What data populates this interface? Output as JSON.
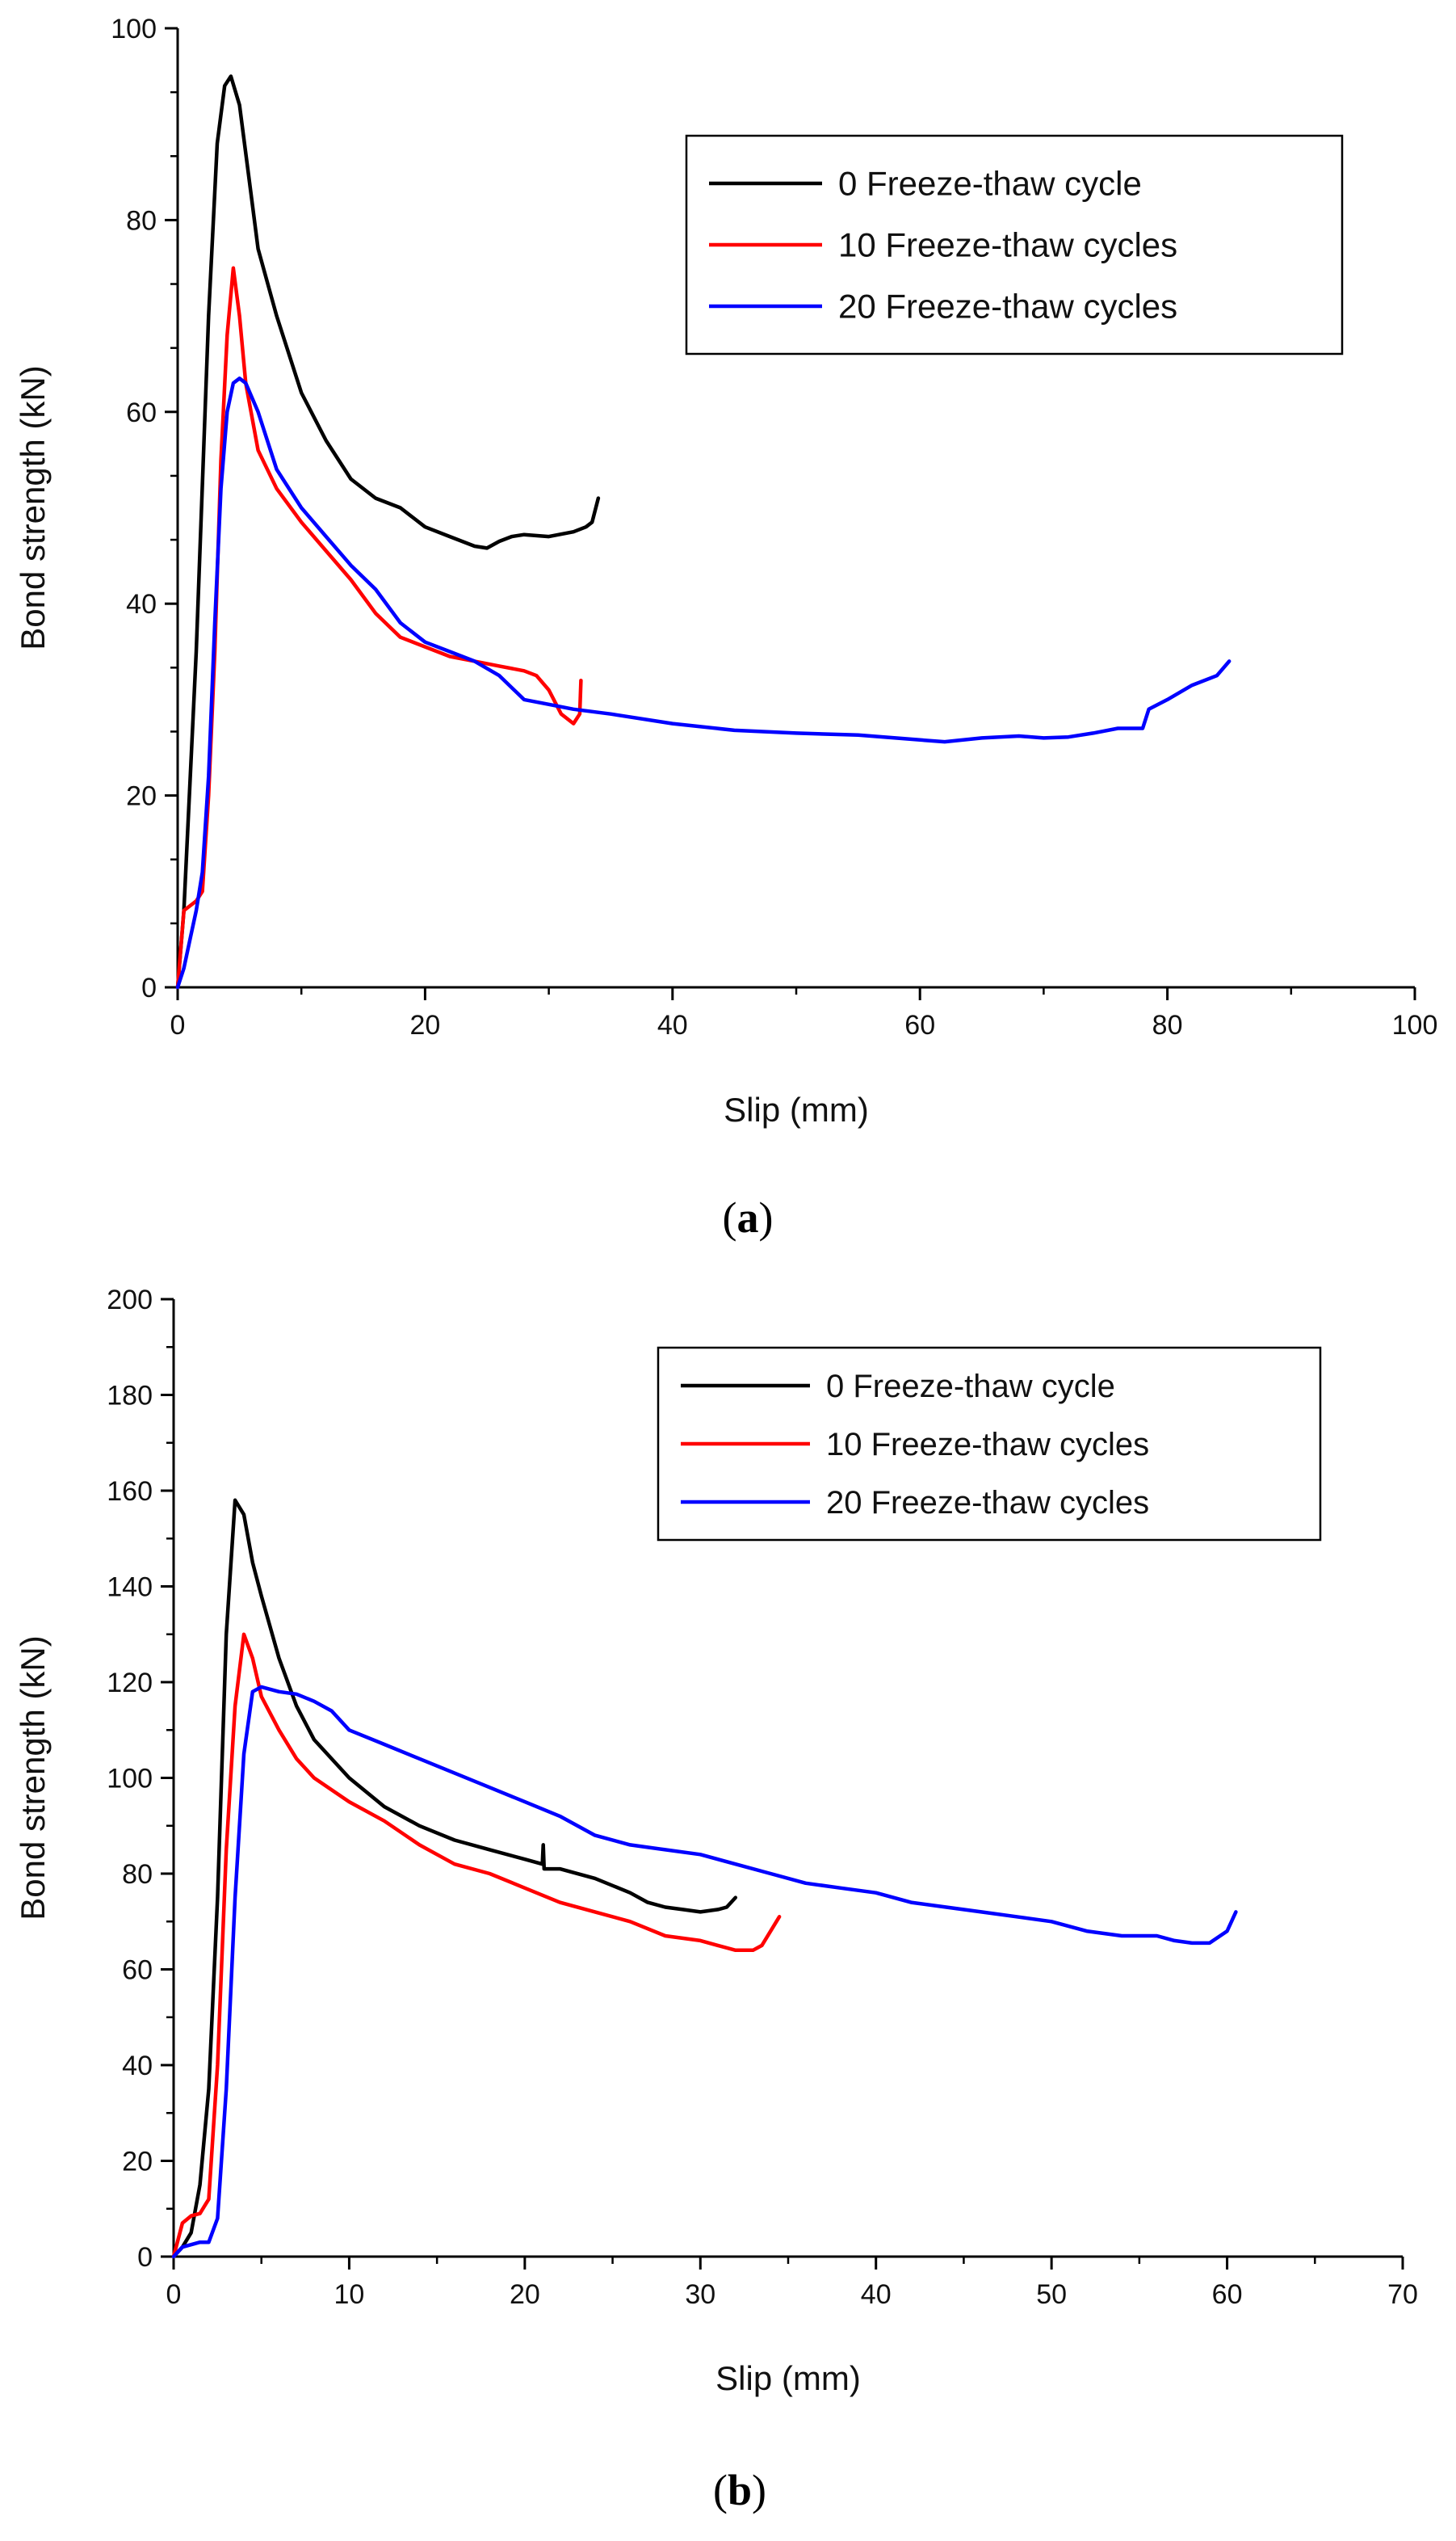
{
  "chart_data": [
    {
      "panel": "(a)",
      "panel_letter": "a",
      "type": "line",
      "title": "",
      "xlabel": "Slip (mm)",
      "ylabel": "Bond strength (kN)",
      "xlim": [
        0,
        100
      ],
      "ylim": [
        0,
        100
      ],
      "xticks": [
        0,
        20,
        40,
        60,
        80,
        100
      ],
      "yticks": [
        0,
        20,
        40,
        60,
        80,
        100
      ],
      "legend_position": "top-right",
      "series": [
        {
          "name": "0 Freeze-thaw cycle",
          "color": "#000000",
          "x": [
            0,
            0.5,
            1.5,
            2.5,
            3.2,
            3.8,
            4.3,
            5.0,
            5.8,
            6.5,
            8,
            10,
            12,
            14,
            16,
            18,
            20,
            22,
            24,
            25,
            26,
            27,
            28,
            30,
            32,
            33,
            33.5,
            34
          ],
          "y": [
            0,
            8,
            35,
            70,
            88,
            94,
            95,
            92,
            84,
            77,
            70,
            62,
            57,
            53,
            51,
            50,
            48,
            47,
            46,
            45.8,
            46.5,
            47,
            47.2,
            47,
            47.5,
            48,
            48.5,
            51
          ]
        },
        {
          "name": "10 Freeze-thaw cycles",
          "color": "#ff0000",
          "x": [
            0,
            0.5,
            1.0,
            1.5,
            2.0,
            2.5,
            3.0,
            3.5,
            4.0,
            4.5,
            5.0,
            5.5,
            6.5,
            8,
            10,
            12,
            14,
            16,
            18,
            20,
            22,
            24,
            26,
            28,
            29,
            30,
            31,
            32,
            32.5,
            32.6
          ],
          "y": [
            0,
            8,
            8.5,
            9,
            10,
            20,
            35,
            55,
            68,
            75,
            70,
            63,
            56,
            52,
            48.5,
            45.5,
            42.5,
            39,
            36.5,
            35.5,
            34.5,
            34,
            33.5,
            33,
            32.5,
            31,
            28.5,
            27.5,
            28.5,
            32
          ]
        },
        {
          "name": "20 Freeze-thaw cycles",
          "color": "#0000ff",
          "x": [
            0,
            0.5,
            1.0,
            1.5,
            2.0,
            2.5,
            3.0,
            3.5,
            4.0,
            4.5,
            5.0,
            5.5,
            6.5,
            8,
            10,
            12,
            14,
            16,
            18,
            20,
            22,
            24,
            26,
            28,
            30,
            32,
            35,
            40,
            45,
            50,
            55,
            60,
            62,
            65,
            68,
            70,
            72,
            74,
            76,
            78,
            78.5,
            80,
            82,
            84,
            85
          ],
          "y": [
            0,
            2,
            5,
            8,
            12,
            22,
            38,
            52,
            60,
            63,
            63.5,
            63,
            60,
            54,
            50,
            47,
            44,
            41.5,
            38,
            36,
            35,
            34,
            32.5,
            30,
            29.5,
            29,
            28.5,
            27.5,
            26.8,
            26.5,
            26.3,
            25.8,
            25.6,
            26,
            26.2,
            26,
            26.1,
            26.5,
            27,
            27,
            29,
            30,
            31.5,
            32.5,
            34
          ]
        }
      ]
    },
    {
      "panel": "(b)",
      "panel_letter": "b",
      "type": "line",
      "title": "",
      "xlabel": "Slip (mm)",
      "ylabel": "Bond strength (kN)",
      "xlim": [
        0,
        70
      ],
      "ylim": [
        0,
        200
      ],
      "xticks": [
        0,
        10,
        20,
        30,
        40,
        50,
        60,
        70
      ],
      "yticks": [
        0,
        20,
        40,
        60,
        80,
        100,
        120,
        140,
        160,
        180,
        200
      ],
      "legend_position": "top-right",
      "series": [
        {
          "name": "0 Freeze-thaw cycle",
          "color": "#000000",
          "x": [
            0,
            0.5,
            1.0,
            1.5,
            2.0,
            2.5,
            3.0,
            3.5,
            4.0,
            4.5,
            5.0,
            6.0,
            7.0,
            8.0,
            10,
            12,
            14,
            16,
            18,
            20,
            21,
            21.05,
            21.1,
            22,
            24,
            26,
            27,
            28,
            29,
            30,
            31,
            31.5,
            32
          ],
          "y": [
            0,
            2,
            5,
            15,
            35,
            75,
            130,
            158,
            155,
            145,
            138,
            125,
            115,
            108,
            100,
            94,
            90,
            87,
            85,
            83,
            82,
            86,
            81,
            81,
            79,
            76,
            74,
            73,
            72.5,
            72,
            72.5,
            73,
            75
          ]
        },
        {
          "name": "10 Freeze-thaw cycles",
          "color": "#ff0000",
          "x": [
            0,
            0.5,
            1.0,
            1.5,
            2.0,
            2.5,
            3.0,
            3.5,
            4.0,
            4.5,
            5.0,
            6.0,
            7.0,
            8.0,
            10,
            12,
            14,
            16,
            18,
            20,
            22,
            24,
            26,
            28,
            30,
            31,
            32,
            33,
            33.5,
            34,
            34.5
          ],
          "y": [
            0,
            7,
            8.5,
            9,
            12,
            40,
            85,
            115,
            130,
            125,
            117,
            110,
            104,
            100,
            95,
            91,
            86,
            82,
            80,
            77,
            74,
            72,
            70,
            67,
            66,
            65,
            64,
            64,
            65,
            68,
            71
          ]
        },
        {
          "name": "20 Freeze-thaw cycles",
          "color": "#0000ff",
          "x": [
            0,
            0.5,
            1.0,
            1.5,
            2.0,
            2.5,
            3.0,
            3.5,
            4.0,
            4.5,
            5.0,
            6.0,
            7.0,
            8.0,
            9,
            10,
            12,
            14,
            16,
            18,
            20,
            22,
            24,
            26,
            28,
            30,
            32,
            34,
            36,
            38,
            40,
            42,
            44,
            46,
            48,
            50,
            52,
            54,
            56,
            57,
            58,
            59,
            60,
            60.5
          ],
          "y": [
            0,
            2,
            2.5,
            3,
            3,
            8,
            35,
            75,
            105,
            118,
            119,
            118,
            117.5,
            116,
            114,
            110,
            107,
            104,
            101,
            98,
            95,
            92,
            88,
            86,
            85,
            84,
            82,
            80,
            78,
            77,
            76,
            74,
            73,
            72,
            71,
            70,
            68,
            67,
            67,
            66,
            65.5,
            65.5,
            68,
            72
          ]
        }
      ]
    }
  ]
}
